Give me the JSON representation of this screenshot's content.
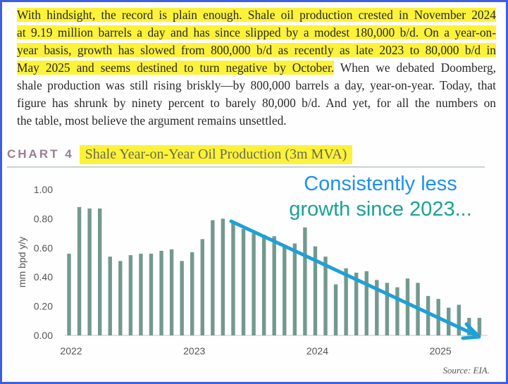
{
  "paragraph": [
    [
      {
        "t": "With hindsight, the record is plain enough. Shale oil production crested in November 2024",
        "hl": true
      }
    ],
    [
      {
        "t": "at 9.19 million barrels a day and has since slipped by a modest 180,000 b/d. On a year-on-",
        "hl": true
      }
    ],
    [
      {
        "t": "year basis, growth has slowed from 800,000 b/d as recently as late 2023 to 80,000 b/d in",
        "hl": true
      }
    ],
    [
      {
        "t": "May 2025 and seems destined to turn negative by October.",
        "hl": true
      },
      {
        "t": " When we debated Doomberg,",
        "hl": false
      }
    ],
    [
      {
        "t": "shale production was still rising briskly—by 800,000 barrels a day, year-on-year. Today, that",
        "hl": false
      }
    ],
    [
      {
        "t": "figure has shrunk by ninety percent to barely 80,000 b/d. And yet, for all the numbers on",
        "hl": false
      }
    ],
    [
      {
        "t": "the table, most believe the argument remains unsettled.",
        "hl": false
      }
    ]
  ],
  "chart_label": "CHART 4",
  "source": "Source: EIA.",
  "annotation": {
    "line1": "Consistently less",
    "line2": "growth since 2023...",
    "arrow": "trend-down-arrow"
  },
  "colors": {
    "bar": "#73998f",
    "arrow": "#1ea0d8",
    "annot1": "#1e90f0",
    "annot2": "#19a294",
    "highlight": "#fcf23a",
    "border": "#3f5ee0"
  },
  "chart_data": {
    "type": "bar",
    "title": "Shale Year-on-Year Oil Production (3m MVA)",
    "xlabel": "",
    "ylabel": "mm bpd y/y",
    "ylim": [
      0,
      1.0
    ],
    "yticks": [
      "0.00",
      "0.20",
      "0.40",
      "0.60",
      "0.80",
      "1.00"
    ],
    "xticks": [
      {
        "label": "2022",
        "index": 0
      },
      {
        "label": "2023",
        "index": 12
      },
      {
        "label": "2024",
        "index": 24
      },
      {
        "label": "2025",
        "index": 36
      }
    ],
    "categories": [
      "2022-01",
      "2022-02",
      "2022-03",
      "2022-04",
      "2022-05",
      "2022-06",
      "2022-07",
      "2022-08",
      "2022-09",
      "2022-10",
      "2022-11",
      "2022-12",
      "2023-01",
      "2023-02",
      "2023-03",
      "2023-04",
      "2023-05",
      "2023-06",
      "2023-07",
      "2023-08",
      "2023-09",
      "2023-10",
      "2023-11",
      "2023-12",
      "2024-01",
      "2024-02",
      "2024-03",
      "2024-04",
      "2024-05",
      "2024-06",
      "2024-07",
      "2024-08",
      "2024-09",
      "2024-10",
      "2024-11",
      "2024-12",
      "2025-01",
      "2025-02",
      "2025-03",
      "2025-04",
      "2025-05"
    ],
    "values": [
      0.56,
      0.88,
      0.87,
      0.87,
      0.54,
      0.51,
      0.55,
      0.56,
      0.56,
      0.58,
      0.59,
      0.51,
      0.57,
      0.66,
      0.79,
      0.8,
      0.77,
      0.73,
      0.7,
      0.69,
      0.68,
      0.62,
      0.63,
      0.74,
      0.61,
      0.54,
      0.35,
      0.46,
      0.43,
      0.44,
      0.38,
      0.36,
      0.33,
      0.39,
      0.36,
      0.27,
      0.25,
      0.19,
      0.21,
      0.12,
      0.12
    ]
  }
}
